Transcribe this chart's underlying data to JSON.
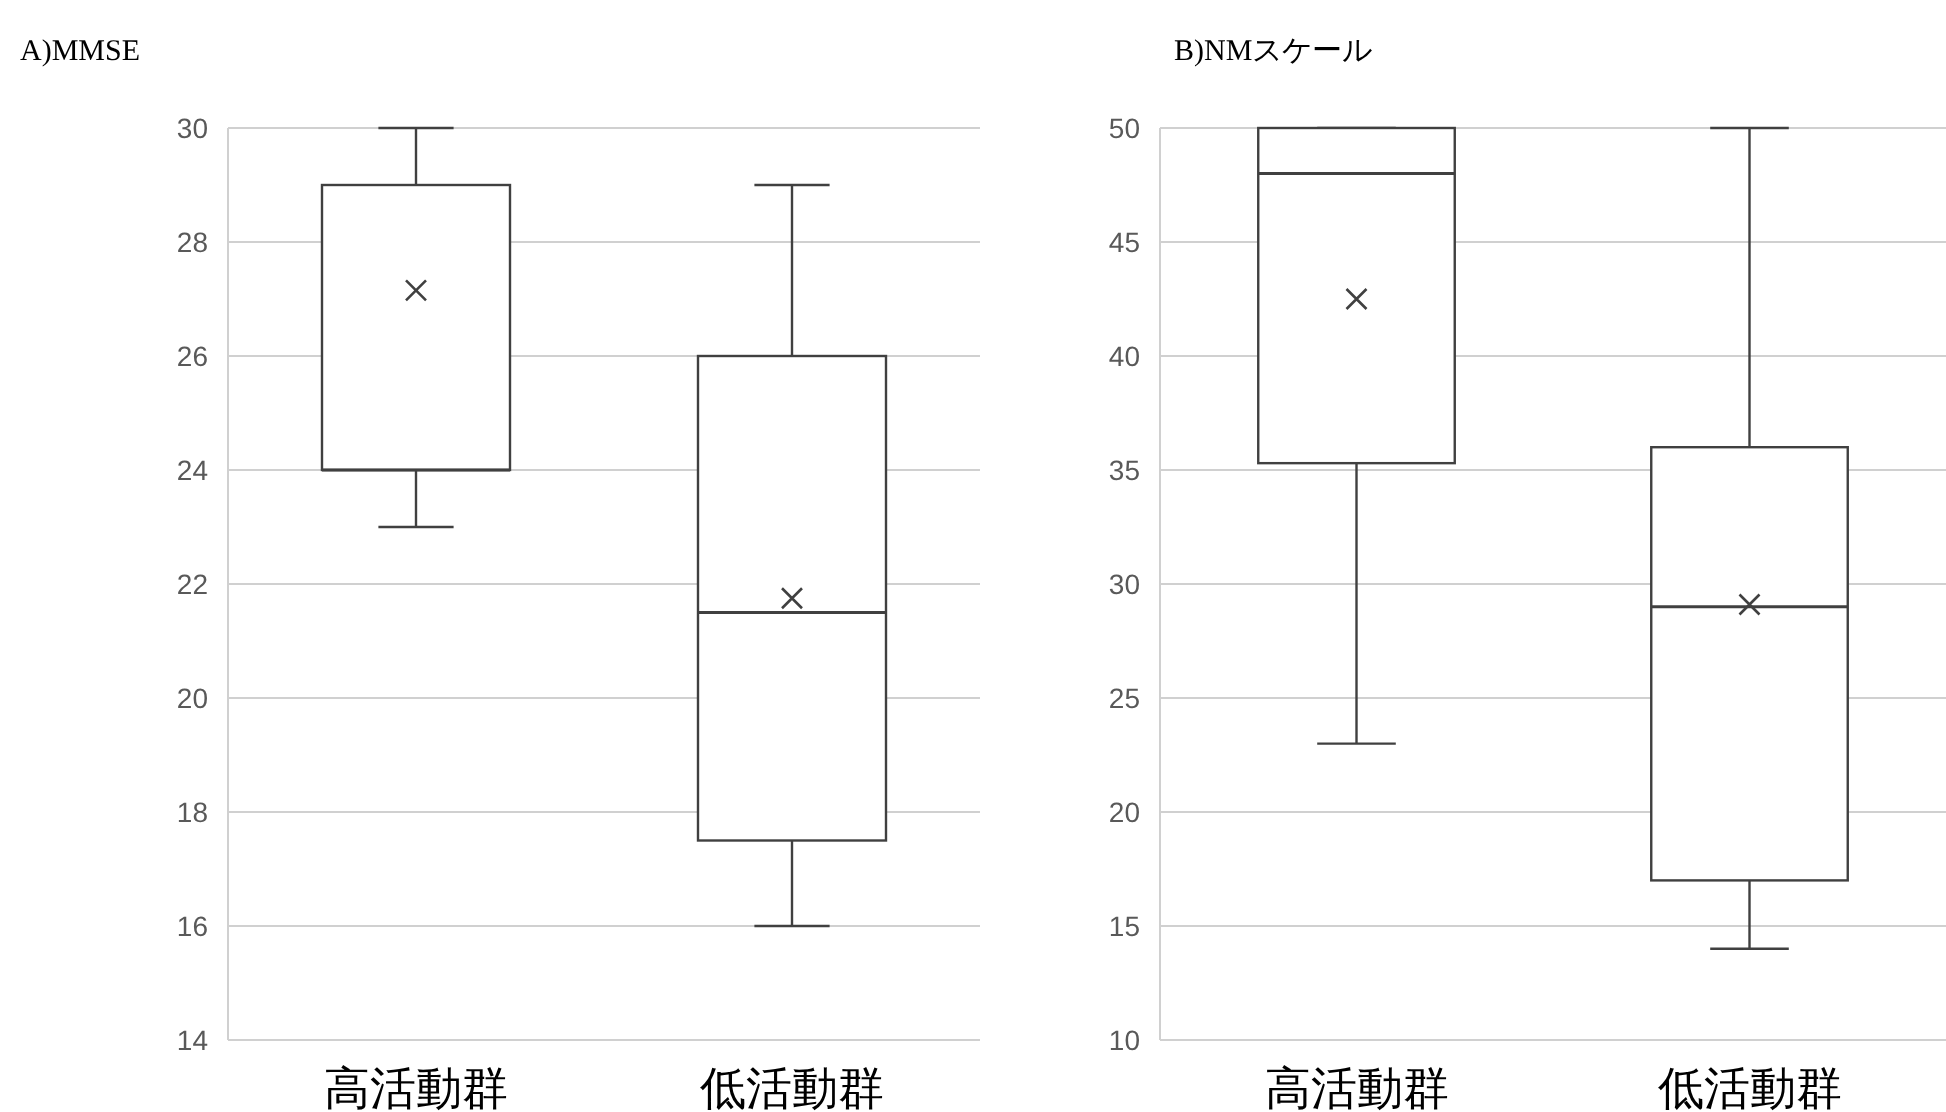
{
  "chart_data": [
    {
      "type": "box",
      "title": "A)MMSE",
      "categories": [
        "高活動群",
        "低活動群"
      ],
      "ylim": [
        14,
        30
      ],
      "yticks": [
        14,
        16,
        18,
        20,
        22,
        24,
        26,
        28,
        30
      ],
      "grid": "y",
      "color": "#404040",
      "boxes": [
        {
          "low": 23,
          "q1": 24,
          "median": 24,
          "q3": 29,
          "high": 30,
          "mean": 27.15
        },
        {
          "low": 16,
          "q1": 17.5,
          "median": 21.5,
          "q3": 26,
          "high": 29,
          "mean": 21.75
        }
      ]
    },
    {
      "type": "box",
      "title": "B)NMスケール",
      "categories": [
        "高活動群",
        "低活動群"
      ],
      "ylim": [
        10,
        50
      ],
      "yticks": [
        10,
        15,
        20,
        25,
        30,
        35,
        40,
        45,
        50
      ],
      "grid": "y",
      "color": "#404040",
      "boxes": [
        {
          "low": 23,
          "q1": 35.3,
          "median": 48,
          "q3": 50,
          "high": 50,
          "mean": 42.5
        },
        {
          "low": 14,
          "q1": 17,
          "median": 29,
          "q3": 36,
          "high": 50,
          "mean": 29.1
        }
      ]
    }
  ]
}
